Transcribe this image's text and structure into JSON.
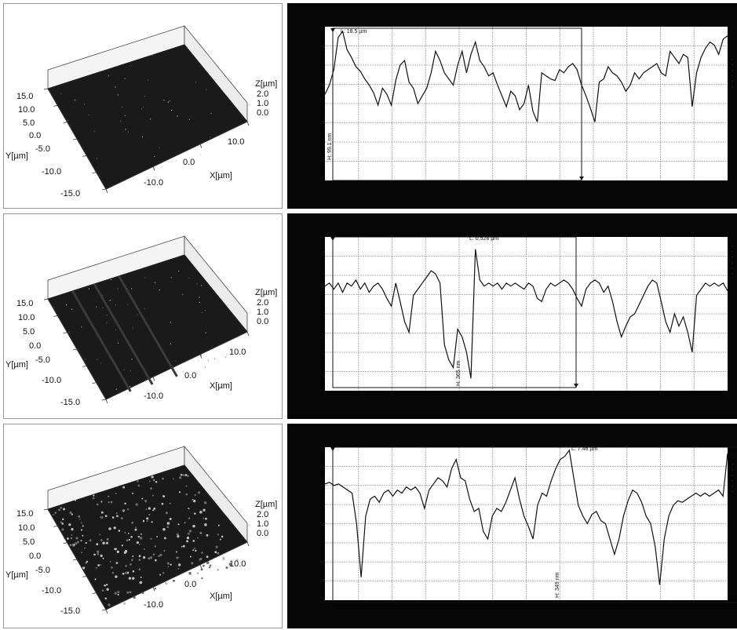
{
  "chart_data": [
    {
      "type": "line",
      "surface": {
        "y_ticks": [
          "15.0",
          "10.0",
          "5.0",
          "0.0",
          "-5.0",
          "-10.0",
          "-15.0"
        ],
        "x_ticks": [
          "-10.0",
          "0.0",
          "10.0"
        ],
        "z_ticks": [
          "2.0",
          "1.0",
          "0.0"
        ],
        "ylabel": "Y[µm]",
        "xlabel": "X[µm]",
        "zlabel": "Z[µm]",
        "texture": "fine"
      },
      "profile": {
        "annotation_L": "L: 18.5 µm",
        "annotation_H": "H: 99.1 nm",
        "values": [
          0.56,
          0.62,
          0.72,
          0.93,
          0.97,
          0.85,
          0.8,
          0.74,
          0.71,
          0.66,
          0.62,
          0.57,
          0.49,
          0.6,
          0.56,
          0.49,
          0.65,
          0.75,
          0.78,
          0.64,
          0.6,
          0.5,
          0.55,
          0.6,
          0.7,
          0.84,
          0.78,
          0.7,
          0.66,
          0.62,
          0.75,
          0.84,
          0.7,
          0.82,
          0.9,
          0.78,
          0.74,
          0.68,
          0.7,
          0.62,
          0.55,
          0.48,
          0.58,
          0.55,
          0.46,
          0.5,
          0.62,
          0.45,
          0.38,
          0.7,
          0.68,
          0.66,
          0.65,
          0.72,
          0.7,
          0.74,
          0.76,
          0.72,
          0.62,
          0.55,
          0.47,
          0.38,
          0.64,
          0.66,
          0.74,
          0.7,
          0.68,
          0.64,
          0.58,
          0.62,
          0.7,
          0.66,
          0.7,
          0.72,
          0.74,
          0.76,
          0.7,
          0.68,
          0.84,
          0.8,
          0.76,
          0.82,
          0.8,
          0.48,
          0.7,
          0.8,
          0.86,
          0.9,
          0.88,
          0.82,
          0.92,
          0.94
        ]
      }
    },
    {
      "type": "line",
      "surface": {
        "y_ticks": [
          "15.0",
          "10.0",
          "5.0",
          "0.0",
          "-5.0",
          "-10.0",
          "-15.0"
        ],
        "x_ticks": [
          "-10.0",
          "0.0",
          "10.0"
        ],
        "z_ticks": [
          "2.0",
          "1.0",
          "0.0"
        ],
        "ylabel": "Y[µm]",
        "xlabel": "X[µm]",
        "zlabel": "Z[µm]",
        "texture": "striped"
      },
      "profile": {
        "annotation_L": "L: 0.528 µm",
        "annotation_H": "H: 365 nm",
        "values": [
          0.68,
          0.7,
          0.66,
          0.7,
          0.64,
          0.7,
          0.68,
          0.72,
          0.66,
          0.7,
          0.64,
          0.68,
          0.7,
          0.66,
          0.6,
          0.55,
          0.7,
          0.58,
          0.45,
          0.38,
          0.62,
          0.66,
          0.7,
          0.74,
          0.78,
          0.76,
          0.7,
          0.3,
          0.2,
          0.15,
          0.4,
          0.35,
          0.25,
          0.08,
          0.92,
          0.72,
          0.68,
          0.7,
          0.68,
          0.7,
          0.66,
          0.7,
          0.68,
          0.7,
          0.68,
          0.66,
          0.7,
          0.68,
          0.6,
          0.58,
          0.66,
          0.7,
          0.68,
          0.7,
          0.72,
          0.7,
          0.66,
          0.6,
          0.55,
          0.66,
          0.7,
          0.72,
          0.7,
          0.64,
          0.68,
          0.58,
          0.45,
          0.35,
          0.42,
          0.48,
          0.5,
          0.56,
          0.62,
          0.68,
          0.72,
          0.7,
          0.58,
          0.45,
          0.38,
          0.5,
          0.42,
          0.48,
          0.38,
          0.25,
          0.62,
          0.66,
          0.7,
          0.68,
          0.7,
          0.68,
          0.7,
          0.65
        ]
      }
    },
    {
      "type": "line",
      "surface": {
        "y_ticks": [
          "15.0",
          "10.0",
          "5.0",
          "0.0",
          "-5.0",
          "-10.0",
          "-15.0"
        ],
        "x_ticks": [
          "-10.0",
          "0.0",
          "10.0"
        ],
        "z_ticks": [
          "2.0",
          "1.0",
          "0.0"
        ],
        "ylabel": "Y[µm]",
        "xlabel": "X[µm]",
        "zlabel": "Z[µm]",
        "texture": "speckled"
      },
      "profile": {
        "annotation_L": "L: 7.46 µm",
        "annotation_H": "H: 349 nm",
        "values": [
          0.76,
          0.77,
          0.75,
          0.76,
          0.74,
          0.72,
          0.7,
          0.5,
          0.15,
          0.55,
          0.66,
          0.68,
          0.64,
          0.7,
          0.72,
          0.68,
          0.72,
          0.7,
          0.74,
          0.72,
          0.74,
          0.7,
          0.6,
          0.72,
          0.76,
          0.8,
          0.78,
          0.74,
          0.86,
          0.92,
          0.8,
          0.78,
          0.66,
          0.58,
          0.6,
          0.45,
          0.4,
          0.55,
          0.6,
          0.58,
          0.64,
          0.72,
          0.8,
          0.66,
          0.55,
          0.48,
          0.4,
          0.62,
          0.7,
          0.68,
          0.78,
          0.86,
          0.92,
          0.94,
          0.98,
          0.8,
          0.62,
          0.55,
          0.5,
          0.56,
          0.58,
          0.52,
          0.5,
          0.4,
          0.3,
          0.4,
          0.55,
          0.65,
          0.72,
          0.7,
          0.64,
          0.55,
          0.5,
          0.35,
          0.1,
          0.4,
          0.55,
          0.62,
          0.65,
          0.64,
          0.66,
          0.68,
          0.7,
          0.68,
          0.7,
          0.68,
          0.7,
          0.72,
          0.68,
          0.96
        ]
      }
    }
  ]
}
